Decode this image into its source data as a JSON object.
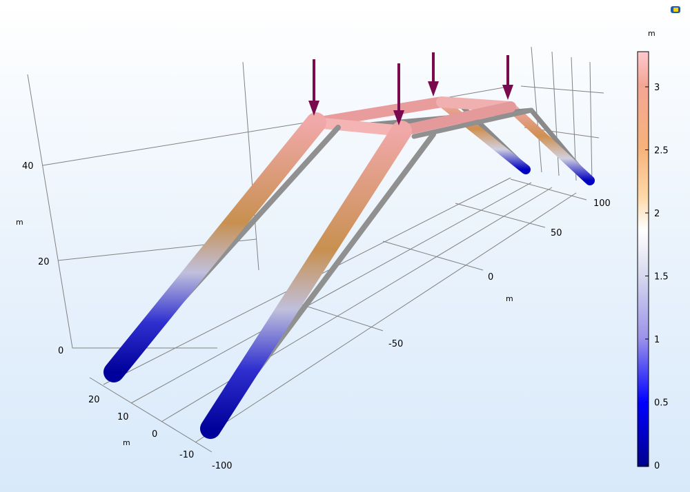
{
  "chart_data": {
    "type": "3d-surface-plot",
    "x_axis": {
      "unit": "m",
      "ticks": [
        "-100",
        "-50",
        "0",
        "50",
        "100"
      ]
    },
    "y_axis": {
      "unit": "m",
      "ticks": [
        "-10",
        "0",
        "10",
        "20"
      ]
    },
    "z_axis": {
      "unit": "m",
      "ticks": [
        "0",
        "20",
        "40"
      ]
    },
    "colorbar": {
      "unit": "m",
      "range": [
        0,
        3.25
      ],
      "ticks": [
        "0",
        "0.5",
        "1",
        "1.5",
        "2",
        "2.5",
        "3"
      ],
      "colors": [
        "#00008c",
        "#0000ff",
        "#9a92ea",
        "#d6d9ee",
        "#ffffff",
        "#ffd8a8",
        "#f7b27a",
        "#f4a694",
        "#ffc9cf"
      ]
    },
    "load_arrow_color": "#7a0a4e",
    "load_arrow_count": 4,
    "grid": true
  }
}
